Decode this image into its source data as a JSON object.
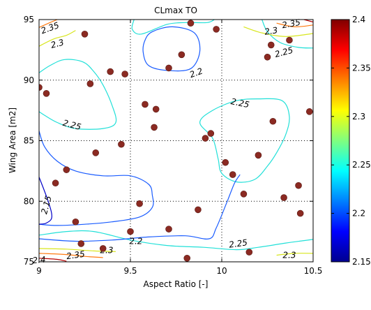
{
  "chart_data": {
    "type": "contour",
    "title": "CLmax TO",
    "xlabel": "Aspect Ratio [-]",
    "ylabel": "Wing Area [m2]",
    "xlim": [
      9,
      10.5
    ],
    "ylim": [
      75,
      95
    ],
    "xticks": [
      9,
      9.5,
      10,
      10.5
    ],
    "xtick_labels": [
      "9",
      "9.5",
      "10",
      "10.5"
    ],
    "yticks": [
      75,
      80,
      85,
      90,
      95
    ],
    "ytick_labels": [
      "75",
      "80",
      "85",
      "90",
      "95"
    ],
    "grid": true,
    "colorbar": {
      "colormap": "jet",
      "range": [
        2.15,
        2.4
      ],
      "ticks": [
        2.15,
        2.2,
        2.25,
        2.3,
        2.35,
        2.4
      ],
      "tick_labels": [
        "2.15",
        "2.2",
        "2.25",
        "2.3",
        "2.35",
        "2.4"
      ]
    },
    "contour_levels": [
      {
        "level": 2.15,
        "color": "#0000c8"
      },
      {
        "level": 2.2,
        "color": "#1a5cff"
      },
      {
        "level": 2.25,
        "color": "#21e0d8"
      },
      {
        "level": 2.3,
        "color": "#d8e61e"
      },
      {
        "level": 2.35,
        "color": "#ff7a10"
      },
      {
        "level": 2.4,
        "color": "#b80000"
      }
    ],
    "contours": [
      {
        "level": 2.2,
        "closed": true,
        "points": [
          [
            9.58,
            93.3
          ],
          [
            9.62,
            94.0
          ],
          [
            9.73,
            94.4
          ],
          [
            9.85,
            93.9
          ],
          [
            9.88,
            92.4
          ],
          [
            9.83,
            90.95
          ],
          [
            9.7,
            90.8
          ],
          [
            9.6,
            91.2
          ],
          [
            9.57,
            92.3
          ]
        ]
      },
      {
        "level": 2.25,
        "closed": false,
        "points": [
          [
            9.0,
            90.6
          ],
          [
            9.06,
            91.2
          ],
          [
            9.14,
            91.7
          ],
          [
            9.24,
            91.5
          ],
          [
            9.3,
            90.7
          ],
          [
            9.35,
            89.6
          ],
          [
            9.4,
            87.9
          ],
          [
            9.42,
            86.5
          ],
          [
            9.35,
            86.0
          ],
          [
            9.2,
            86.0
          ],
          [
            9.1,
            86.5
          ],
          [
            9.03,
            87.1
          ],
          [
            9.0,
            87.4
          ]
        ]
      },
      {
        "level": 2.25,
        "closed": false,
        "points": [
          [
            9.52,
            95.0
          ],
          [
            9.51,
            94.2
          ],
          [
            9.56,
            93.8
          ],
          [
            9.7,
            94.6
          ],
          [
            9.8,
            94.75
          ],
          [
            9.92,
            94.75
          ],
          [
            9.96,
            95.0
          ]
        ]
      },
      {
        "level": 2.25,
        "closed": true,
        "points": [
          [
            9.95,
            85.2
          ],
          [
            9.88,
            86.5
          ],
          [
            9.95,
            87.5
          ],
          [
            10.08,
            88.3
          ],
          [
            10.2,
            88.45
          ],
          [
            10.33,
            88.3
          ],
          [
            10.37,
            87.0
          ],
          [
            10.35,
            85.5
          ],
          [
            10.3,
            84.0
          ],
          [
            10.25,
            82.9
          ],
          [
            10.18,
            81.8
          ],
          [
            10.08,
            81.6
          ],
          [
            10.0,
            82.3
          ],
          [
            9.98,
            83.5
          ]
        ]
      },
      {
        "level": 2.25,
        "closed": false,
        "points": [
          [
            9.0,
            77.2
          ],
          [
            9.15,
            77.5
          ],
          [
            9.3,
            77.5
          ],
          [
            9.5,
            76.8
          ],
          [
            9.7,
            76.35
          ],
          [
            9.9,
            76.2
          ],
          [
            10.08,
            76.0
          ],
          [
            10.2,
            76.2
          ],
          [
            10.35,
            76.55
          ],
          [
            10.45,
            76.75
          ],
          [
            10.5,
            76.85
          ]
        ]
      },
      {
        "level": 2.25,
        "closed": false,
        "points": [
          [
            10.22,
            95.0
          ],
          [
            10.25,
            94.0
          ],
          [
            10.32,
            93.1
          ],
          [
            10.42,
            92.7
          ],
          [
            10.5,
            92.65
          ]
        ]
      },
      {
        "level": 2.2,
        "closed": false,
        "points": [
          [
            9.0,
            85.8
          ],
          [
            9.03,
            84.5
          ],
          [
            9.1,
            83.3
          ],
          [
            9.2,
            82.5
          ],
          [
            9.35,
            82.1
          ],
          [
            9.5,
            82.1
          ],
          [
            9.6,
            81.4
          ],
          [
            9.62,
            80.5
          ],
          [
            9.62,
            79.5
          ],
          [
            9.55,
            78.7
          ],
          [
            9.4,
            78.3
          ],
          [
            9.25,
            78.1
          ],
          [
            9.1,
            78.0
          ],
          [
            9.0,
            78.1
          ]
        ]
      },
      {
        "level": 2.2,
        "closed": false,
        "points": [
          [
            9.0,
            76.9
          ],
          [
            9.2,
            76.7
          ],
          [
            9.4,
            76.8
          ],
          [
            9.6,
            77.05
          ],
          [
            9.8,
            77.15
          ],
          [
            9.93,
            76.9
          ],
          [
            9.97,
            77.8
          ],
          [
            10.03,
            80.0
          ],
          [
            10.07,
            81.5
          ],
          [
            10.1,
            82.2
          ]
        ]
      },
      {
        "level": 2.15,
        "closed": false,
        "points": [
          [
            9.0,
            82.0
          ],
          [
            9.05,
            80.0
          ],
          [
            9.07,
            78.7
          ],
          [
            9.04,
            78.2
          ],
          [
            9.0,
            78.1
          ]
        ]
      },
      {
        "level": 2.3,
        "closed": false,
        "points": [
          [
            9.0,
            92.8
          ],
          [
            9.08,
            93.4
          ],
          [
            9.15,
            93.7
          ],
          [
            9.2,
            94.1
          ]
        ]
      },
      {
        "level": 2.3,
        "closed": false,
        "points": [
          [
            10.12,
            94.4
          ],
          [
            10.22,
            93.9
          ],
          [
            10.35,
            93.6
          ],
          [
            10.5,
            93.85
          ]
        ]
      },
      {
        "level": 2.3,
        "closed": false,
        "points": [
          [
            9.0,
            76.1
          ],
          [
            9.15,
            76.05
          ],
          [
            9.3,
            75.9
          ],
          [
            9.42,
            75.85
          ]
        ]
      },
      {
        "level": 2.3,
        "closed": false,
        "points": [
          [
            10.3,
            75.55
          ],
          [
            10.4,
            75.7
          ],
          [
            10.5,
            75.7
          ]
        ]
      },
      {
        "level": 2.35,
        "closed": false,
        "points": [
          [
            9.0,
            94.35
          ],
          [
            9.06,
            94.75
          ],
          [
            9.1,
            95.0
          ]
        ]
      },
      {
        "level": 2.35,
        "closed": false,
        "points": [
          [
            10.3,
            94.7
          ],
          [
            10.4,
            94.4
          ],
          [
            10.5,
            94.55
          ]
        ]
      },
      {
        "level": 2.35,
        "closed": false,
        "points": [
          [
            9.0,
            75.7
          ],
          [
            9.15,
            75.6
          ],
          [
            9.25,
            75.45
          ],
          [
            9.35,
            75.35
          ]
        ]
      },
      {
        "level": 2.4,
        "closed": false,
        "points": [
          [
            9.0,
            75.3
          ],
          [
            9.1,
            75.2
          ],
          [
            9.15,
            75.05
          ]
        ]
      },
      {
        "level": 2.4,
        "closed": false,
        "points": [
          [
            10.45,
            95.0
          ],
          [
            10.5,
            94.8
          ]
        ]
      }
    ],
    "contour_labels": [
      {
        "text": "2.35",
        "x": 9.06,
        "y": 94.3,
        "rot": -20
      },
      {
        "text": "2.3",
        "x": 9.1,
        "y": 93.0,
        "rot": -15
      },
      {
        "text": "2.2",
        "x": 9.86,
        "y": 90.6,
        "rot": -20
      },
      {
        "text": "2.3",
        "x": 10.27,
        "y": 94.05,
        "rot": -8
      },
      {
        "text": "2.35",
        "x": 10.38,
        "y": 94.65,
        "rot": -10
      },
      {
        "text": "2.25",
        "x": 10.34,
        "y": 92.3,
        "rot": -15
      },
      {
        "text": "2.25",
        "x": 9.18,
        "y": 86.3,
        "rot": 15
      },
      {
        "text": "2.25",
        "x": 10.1,
        "y": 88.1,
        "rot": 12
      },
      {
        "text": "2.15",
        "x": 9.04,
        "y": 79.7,
        "rot": -75
      },
      {
        "text": "2.2",
        "x": 9.53,
        "y": 76.7,
        "rot": 0
      },
      {
        "text": "2.25",
        "x": 10.09,
        "y": 76.5,
        "rot": -8
      },
      {
        "text": "2.3",
        "x": 10.37,
        "y": 75.55,
        "rot": 0
      },
      {
        "text": "2.35",
        "x": 9.2,
        "y": 75.55,
        "rot": -8
      },
      {
        "text": "2.4",
        "x": 9.0,
        "y": 75.15,
        "rot": -5
      },
      {
        "text": "2.3",
        "x": 9.37,
        "y": 75.95,
        "rot": 0
      }
    ],
    "marker_color": "#8b2a22",
    "samples": [
      {
        "x": 9.0,
        "y": 89.4
      },
      {
        "x": 9.04,
        "y": 88.9
      },
      {
        "x": 9.09,
        "y": 81.5
      },
      {
        "x": 9.15,
        "y": 82.6
      },
      {
        "x": 9.2,
        "y": 78.3
      },
      {
        "x": 9.23,
        "y": 76.5
      },
      {
        "x": 9.25,
        "y": 93.8
      },
      {
        "x": 9.28,
        "y": 89.7
      },
      {
        "x": 9.31,
        "y": 84.0
      },
      {
        "x": 9.35,
        "y": 76.1
      },
      {
        "x": 9.39,
        "y": 90.7
      },
      {
        "x": 9.45,
        "y": 84.7
      },
      {
        "x": 9.47,
        "y": 90.5
      },
      {
        "x": 9.5,
        "y": 77.5
      },
      {
        "x": 9.55,
        "y": 79.8
      },
      {
        "x": 9.58,
        "y": 88.0
      },
      {
        "x": 9.63,
        "y": 86.1
      },
      {
        "x": 9.64,
        "y": 87.6
      },
      {
        "x": 9.71,
        "y": 91.0
      },
      {
        "x": 9.71,
        "y": 77.7
      },
      {
        "x": 9.78,
        "y": 92.1
      },
      {
        "x": 9.81,
        "y": 75.3
      },
      {
        "x": 9.83,
        "y": 94.7
      },
      {
        "x": 9.87,
        "y": 79.3
      },
      {
        "x": 9.91,
        "y": 85.2
      },
      {
        "x": 9.94,
        "y": 85.6
      },
      {
        "x": 9.97,
        "y": 94.2
      },
      {
        "x": 10.02,
        "y": 83.2
      },
      {
        "x": 10.06,
        "y": 82.2
      },
      {
        "x": 10.12,
        "y": 80.6
      },
      {
        "x": 10.15,
        "y": 75.8
      },
      {
        "x": 10.2,
        "y": 83.8
      },
      {
        "x": 10.25,
        "y": 91.9
      },
      {
        "x": 10.27,
        "y": 92.9
      },
      {
        "x": 10.28,
        "y": 86.6
      },
      {
        "x": 10.34,
        "y": 80.3
      },
      {
        "x": 10.37,
        "y": 93.3
      },
      {
        "x": 10.42,
        "y": 81.3
      },
      {
        "x": 10.43,
        "y": 79.0
      },
      {
        "x": 10.48,
        "y": 87.4
      }
    ]
  }
}
